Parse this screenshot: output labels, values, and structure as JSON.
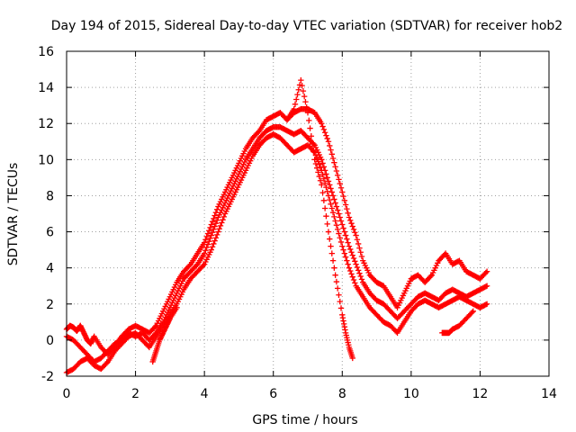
{
  "chart_data": {
    "type": "scatter",
    "title": "Day 194 of 2015, Sidereal Day-to-day VTEC variation (SDTVAR) for receiver hob2",
    "xlabel": "GPS time / hours",
    "ylabel": "SDTVAR / TECUs",
    "xlim": [
      0,
      14
    ],
    "ylim": [
      -2,
      16
    ],
    "xticks": [
      0,
      2,
      4,
      6,
      8,
      10,
      12,
      14
    ],
    "yticks": [
      -2,
      0,
      2,
      4,
      6,
      8,
      10,
      12,
      14,
      16
    ],
    "grid": true,
    "marker": "plus",
    "color": "#ff0000",
    "series": [
      {
        "x": [
          0.0,
          0.1,
          0.2,
          0.3,
          0.4,
          0.5,
          0.6,
          0.7,
          0.8,
          1.0,
          1.2,
          1.4,
          1.6,
          1.8,
          2.0,
          2.2,
          2.4,
          2.6,
          2.8,
          3.0,
          3.2,
          3.4,
          3.6,
          3.8,
          4.0,
          4.2,
          4.4,
          4.6,
          4.8,
          5.0,
          5.2,
          5.4,
          5.6,
          5.8,
          6.0,
          6.2,
          6.4,
          6.6,
          6.8,
          7.0,
          7.2,
          7.4,
          7.6,
          7.8,
          8.0,
          8.2,
          8.4,
          8.6,
          8.8,
          9.0,
          9.2,
          9.4,
          9.6,
          9.8,
          10.0,
          10.2,
          10.4,
          10.6,
          10.8,
          11.0,
          11.2,
          11.4,
          11.6,
          11.8,
          12.0,
          12.2
        ],
        "y": [
          0.6,
          0.8,
          0.7,
          0.5,
          0.8,
          0.4,
          0.0,
          -0.2,
          0.2,
          -0.4,
          -0.8,
          -0.3,
          0.2,
          0.6,
          0.8,
          0.6,
          0.4,
          0.8,
          1.6,
          2.4,
          3.2,
          3.8,
          4.2,
          4.8,
          5.4,
          6.4,
          7.4,
          8.2,
          9.0,
          9.8,
          10.6,
          11.2,
          11.6,
          12.2,
          12.4,
          12.6,
          12.2,
          12.6,
          12.8,
          12.8,
          12.6,
          12.0,
          11.0,
          9.6,
          8.2,
          6.8,
          5.8,
          4.4,
          3.6,
          3.2,
          3.0,
          2.4,
          1.8,
          2.6,
          3.4,
          3.6,
          3.2,
          3.6,
          4.4,
          4.8,
          4.2,
          4.4,
          3.8,
          3.6,
          3.4,
          3.8
        ]
      },
      {
        "x": [
          0.0,
          0.2,
          0.4,
          0.6,
          0.8,
          1.0,
          1.2,
          1.4,
          1.6,
          1.8,
          2.0,
          2.2,
          2.4,
          2.6,
          2.8,
          3.0,
          3.2,
          3.4,
          3.6,
          3.8,
          4.0,
          4.2,
          4.4,
          4.6,
          4.8,
          5.0,
          5.2,
          5.4,
          5.6,
          5.8,
          6.0,
          6.2,
          6.4,
          6.6,
          6.8,
          7.0,
          7.2,
          7.4,
          7.6,
          7.8,
          8.0,
          8.2,
          8.4,
          8.6,
          8.8,
          9.0,
          9.2,
          9.4,
          9.6,
          9.8,
          10.0,
          10.2,
          10.4,
          10.6,
          10.8,
          11.0,
          11.2,
          11.4,
          11.6,
          11.8,
          12.0,
          12.2
        ],
        "y": [
          0.2,
          0.0,
          -0.4,
          -0.8,
          -1.2,
          -1.0,
          -0.6,
          -0.2,
          0.0,
          0.4,
          0.2,
          0.4,
          0.0,
          0.4,
          1.0,
          1.8,
          2.6,
          3.4,
          3.8,
          4.2,
          4.8,
          5.8,
          6.8,
          7.6,
          8.4,
          9.2,
          10.0,
          10.6,
          11.2,
          11.6,
          11.8,
          11.8,
          11.6,
          11.4,
          11.6,
          11.2,
          10.8,
          10.0,
          8.8,
          7.6,
          6.4,
          5.2,
          4.2,
          3.2,
          2.6,
          2.2,
          2.0,
          1.6,
          1.2,
          1.6,
          2.0,
          2.4,
          2.6,
          2.4,
          2.2,
          2.6,
          2.8,
          2.6,
          2.4,
          2.6,
          2.8,
          3.0
        ]
      },
      {
        "x": [
          0.0,
          0.2,
          0.4,
          0.6,
          0.8,
          1.0,
          1.2,
          1.4,
          1.6,
          1.8,
          2.0,
          2.2,
          2.4,
          2.6,
          2.8,
          3.0,
          3.2,
          3.4,
          3.6,
          3.8,
          4.0,
          4.2,
          4.4,
          4.6,
          4.8,
          5.0,
          5.2,
          5.4,
          5.6,
          5.8,
          6.0,
          6.2,
          6.4,
          6.6,
          6.8,
          7.0,
          7.2,
          7.4,
          7.6,
          7.8,
          8.0,
          8.2,
          8.4,
          8.6,
          8.8,
          9.0,
          9.2,
          9.4,
          9.6,
          9.8,
          10.0,
          10.2,
          10.4,
          10.6,
          10.8,
          11.0,
          11.2,
          11.4,
          11.6,
          11.8,
          12.0,
          12.2
        ],
        "y": [
          -1.8,
          -1.6,
          -1.2,
          -1.0,
          -1.4,
          -1.6,
          -1.2,
          -0.6,
          -0.2,
          0.2,
          0.4,
          0.0,
          -0.4,
          0.2,
          0.8,
          1.4,
          2.0,
          2.8,
          3.4,
          3.8,
          4.2,
          5.0,
          6.0,
          7.0,
          7.8,
          8.6,
          9.4,
          10.2,
          10.8,
          11.2,
          11.4,
          11.2,
          10.8,
          10.4,
          10.6,
          10.8,
          10.4,
          9.4,
          8.0,
          6.6,
          5.2,
          4.0,
          3.0,
          2.4,
          1.8,
          1.4,
          1.0,
          0.8,
          0.4,
          1.0,
          1.6,
          2.0,
          2.2,
          2.0,
          1.8,
          2.0,
          2.2,
          2.4,
          2.2,
          2.0,
          1.8,
          2.0
        ]
      },
      {
        "x": [
          6.4,
          6.6,
          6.8,
          7.0,
          7.2,
          7.4,
          7.6,
          7.8,
          8.0,
          8.1,
          8.2,
          8.3
        ],
        "y": [
          12.2,
          12.8,
          14.4,
          12.6,
          10.0,
          8.6,
          6.0,
          3.6,
          1.4,
          0.4,
          -0.4,
          -1.0
        ]
      },
      {
        "x": [
          2.5,
          2.6,
          2.7,
          2.8,
          2.9,
          3.0,
          3.2
        ],
        "y": [
          -1.2,
          -0.6,
          0.0,
          0.4,
          0.8,
          1.2,
          1.8
        ]
      },
      {
        "x": [
          10.9,
          11.0,
          11.1,
          11.2,
          11.4,
          11.6,
          11.8
        ],
        "y": [
          0.4,
          0.4,
          0.4,
          0.6,
          0.8,
          1.2,
          1.6
        ]
      }
    ]
  }
}
